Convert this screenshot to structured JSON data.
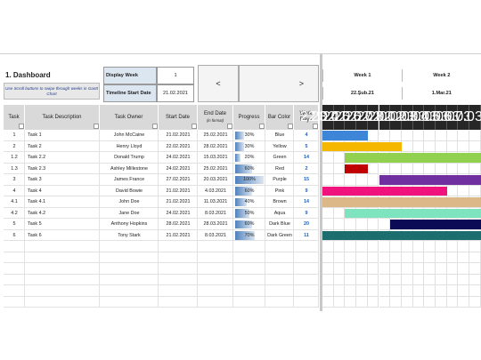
{
  "dashboard": {
    "title": "1. Dashboard",
    "note": "Use Scroll buttons to swipe through weeks in Gantt Chart",
    "display_week_label": "Display Week",
    "display_week": "1",
    "timeline_start_label": "Timeline Start Date",
    "timeline_start": "21.02.2021",
    "prev_button": "<",
    "next_button": ">"
  },
  "gantt": {
    "weeks": [
      {
        "label": "Week 1",
        "date": "22.Şub.21"
      },
      {
        "label": "Week 2",
        "date": "1.Mar.21"
      }
    ],
    "days": [
      "22.02.21",
      "23.02.21",
      "24.02.21",
      "25.02.21",
      "26.02.21",
      "27.02.21",
      "28.02.21",
      "01.03.21",
      "02.03.21",
      "03.03.21",
      "04.03.21",
      "05.03.21",
      "06.03.21",
      "07.03.21"
    ]
  },
  "table": {
    "headers": [
      "Task",
      "Task Description",
      "Task Owner",
      "Start Date",
      "End Date",
      "Progress",
      "Bar Color",
      "Work Days"
    ],
    "end_date_note": "(in format)",
    "rows": [
      {
        "cells": [
          "1",
          "Task 1",
          "John McCaine",
          "21.02.2021",
          "25.02.2021",
          "30%",
          "Blue",
          "4"
        ],
        "color": "#3d85d6"
      },
      {
        "cells": [
          "2",
          "Task 2",
          "Henry Lloyd",
          "22.02.2021",
          "28.02.2021",
          "30%",
          "Yellow",
          "5"
        ],
        "color": "#f5b700"
      },
      {
        "cells": [
          "1.2",
          "Task 2.2",
          "Donald Trump",
          "24.02.2021",
          "15.03.2021",
          "20%",
          "Green",
          "14"
        ],
        "color": "#92d050"
      },
      {
        "cells": [
          "1.3",
          "Task 2.3",
          "Ashley Millestone",
          "24.02.2021",
          "25.02.2021",
          "60%",
          "Red",
          "2"
        ],
        "color": "#c00000"
      },
      {
        "cells": [
          "3",
          "Task 3",
          "James France",
          "27.02.2021",
          "20.03.2021",
          "100%",
          "Purple",
          "15"
        ],
        "color": "#7030a0"
      },
      {
        "cells": [
          "4",
          "Task 4",
          "David Bowie",
          "21.02.2021",
          "4.03.2021",
          "60%",
          "Pink",
          "9"
        ],
        "color": "#f0127d"
      },
      {
        "cells": [
          "4.1",
          "Task 4.1",
          "John Doe",
          "21.02.2021",
          "11.03.2021",
          "40%",
          "Brown",
          "14"
        ],
        "color": "#dcb888"
      },
      {
        "cells": [
          "4.2",
          "Task 4.2",
          "Jane Doe",
          "24.02.2021",
          "8.03.2021",
          "50%",
          "Aqua",
          "9"
        ],
        "color": "#7ee3bf"
      },
      {
        "cells": [
          "5",
          "Task 5",
          "Anthony Hopkins",
          "28.02.2021",
          "28.03.2021",
          "60%",
          "Dark Blue",
          "20"
        ],
        "color": "#0b0b55"
      },
      {
        "cells": [
          "6",
          "Task 6",
          "Tony Stark",
          "21.02.2021",
          "8.03.2021",
          "70%",
          "Dark Green",
          "11"
        ],
        "color": "#1c6e6e"
      }
    ]
  }
}
